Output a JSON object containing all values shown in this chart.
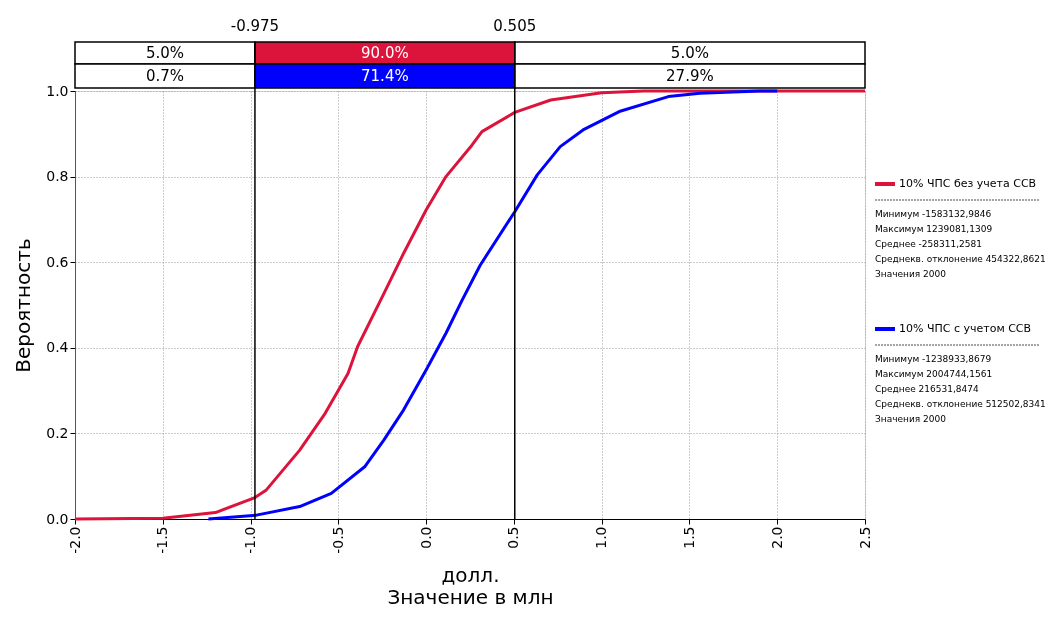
{
  "chart_data": {
    "type": "line",
    "xlabel": "долл.\nЗначение в млн",
    "ylabel": "Вероятность",
    "xlim": [
      -2.0,
      2.5
    ],
    "xticks": [
      {
        "value": -2,
        "label": "-2.0"
      },
      {
        "value": -1.5,
        "label": "-1.5"
      },
      {
        "value": -1,
        "label": "-1.0"
      },
      {
        "value": -0.5,
        "label": "-0.5"
      },
      {
        "value": 0,
        "label": "0.0"
      },
      {
        "value": 0.5,
        "label": "0.5"
      },
      {
        "value": 1,
        "label": "1.0"
      },
      {
        "value": 1.5,
        "label": "1.5"
      },
      {
        "value": 2,
        "label": "2.0"
      },
      {
        "value": 2.5,
        "label": "2.5"
      }
    ],
    "ylim": [
      0,
      1
    ],
    "yticks": [
      {
        "value": 0,
        "label": "0.0"
      },
      {
        "value": 0.2,
        "label": "0.2"
      },
      {
        "value": 0.4,
        "label": "0.4"
      },
      {
        "value": 0.6,
        "label": "0.6"
      },
      {
        "value": 0.8,
        "label": "0.8"
      },
      {
        "value": 1,
        "label": "1.0"
      }
    ],
    "grid": true,
    "legend": "right",
    "marker": "none",
    "line_style": "solid",
    "series": [
      {
        "name": "10% ЧПС без учета ССВ",
        "color": "#dc143c",
        "x": [
          -2.0,
          -1.5,
          -1.2,
          -0.975,
          -0.91,
          -0.72,
          -0.575,
          -0.445,
          -0.39,
          -0.24,
          -0.128,
          0.0,
          0.113,
          0.262,
          0.318,
          0.505,
          0.71,
          1.0,
          1.24,
          2.5
        ],
        "values": [
          0,
          0.002,
          0.015,
          0.05,
          0.068,
          0.161,
          0.247,
          0.34,
          0.403,
          0.527,
          0.621,
          0.722,
          0.8,
          0.874,
          0.905,
          0.95,
          0.979,
          0.996,
          1.0,
          1.0
        ]
      },
      {
        "name": "10% ЧПС с учетом ССВ",
        "color": "#0000ff",
        "x": [
          -1.24,
          -0.967,
          -0.72,
          -0.54,
          -0.35,
          -0.24,
          -0.128,
          0.0,
          0.113,
          0.206,
          0.308,
          0.505,
          0.633,
          0.764,
          0.894,
          1.1,
          1.38,
          1.56,
          1.9,
          2.0
        ],
        "values": [
          0,
          0.009,
          0.029,
          0.06,
          0.122,
          0.185,
          0.255,
          0.348,
          0.434,
          0.512,
          0.593,
          0.718,
          0.804,
          0.87,
          0.909,
          0.952,
          0.987,
          0.995,
          1.0,
          1.0
        ]
      }
    ],
    "ref_lines": [
      {
        "axis": "x",
        "value": -0.975,
        "label": "-0.975",
        "color": "#000000"
      },
      {
        "axis": "x",
        "value": 0.505,
        "label": "0.505",
        "color": "#000000"
      }
    ],
    "annotations": [
      "5.0%",
      "90.0%",
      "5.0%",
      "0.7%",
      "71.4%",
      "27.9%",
      "Минимум  -1583132,9846",
      "Максимум  1239081,1309",
      "Среднее  -258311,2581",
      "Среднекв. отклонение  454322,8621",
      "Значения  2000",
      "Минимум  -1238933,8679",
      "Максимум  2004744,1561",
      "Среднее  216531,8474",
      "Среднекв. отклонение  512502,8341",
      "Значения  2000"
    ]
  }
}
